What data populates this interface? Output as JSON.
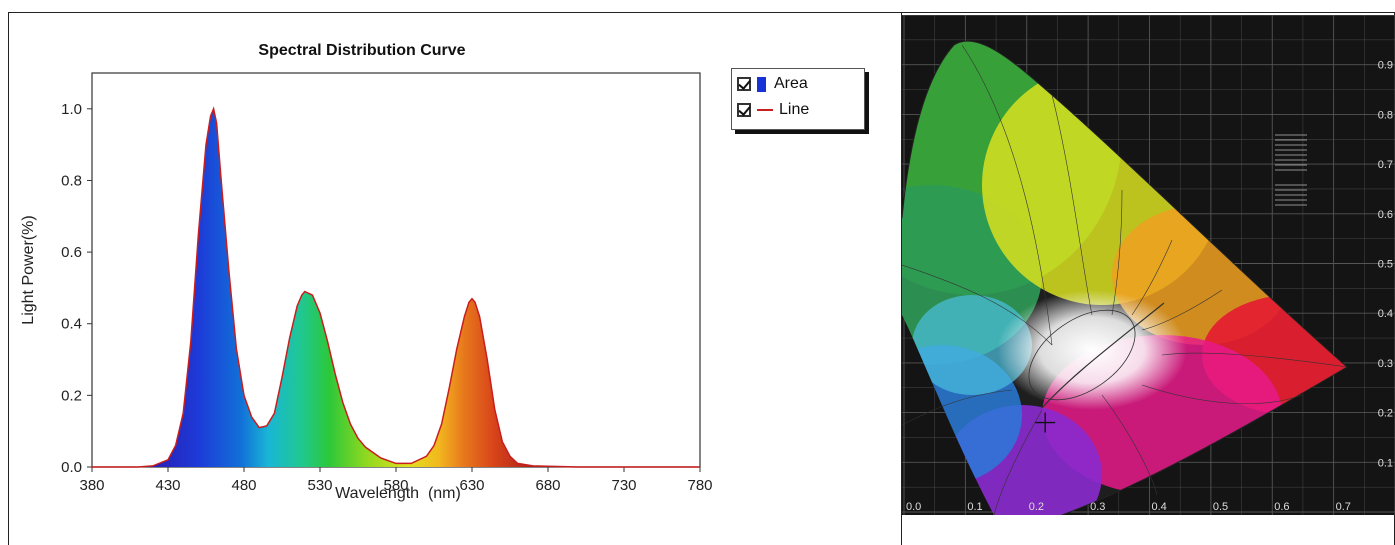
{
  "chart_data": [
    {
      "type": "area",
      "title": "Spectral Distribution Curve",
      "xlabel": "Wavelength  (nm)",
      "ylabel": "Light Power(%)",
      "xlim": [
        380,
        780
      ],
      "ylim": [
        0,
        1.1
      ],
      "xticks": [
        "380",
        "430",
        "480",
        "530",
        "580",
        "630",
        "680",
        "730",
        "780"
      ],
      "yticks": [
        "0.0",
        "0.2",
        "0.4",
        "0.6",
        "0.8",
        "1.0"
      ],
      "grid": false,
      "legend_position": "right",
      "legend": [
        {
          "label": "Area",
          "checked": true,
          "color": "#1733d6"
        },
        {
          "label": "Line",
          "checked": true,
          "color": "#c81e1e"
        }
      ],
      "series": [
        {
          "name": "Line",
          "x": [
            380,
            410,
            420,
            430,
            435,
            440,
            445,
            450,
            455,
            458,
            460,
            462,
            465,
            470,
            475,
            480,
            485,
            490,
            495,
            500,
            505,
            510,
            515,
            518,
            520,
            525,
            530,
            535,
            540,
            545,
            550,
            555,
            560,
            570,
            580,
            590,
            600,
            605,
            610,
            615,
            620,
            625,
            628,
            630,
            632,
            635,
            640,
            645,
            650,
            655,
            660,
            670,
            700,
            780
          ],
          "y": [
            0,
            0,
            0.003,
            0.02,
            0.06,
            0.15,
            0.35,
            0.65,
            0.9,
            0.98,
            1.0,
            0.96,
            0.8,
            0.55,
            0.33,
            0.2,
            0.14,
            0.11,
            0.115,
            0.15,
            0.25,
            0.36,
            0.45,
            0.48,
            0.49,
            0.48,
            0.43,
            0.35,
            0.26,
            0.18,
            0.12,
            0.08,
            0.055,
            0.025,
            0.01,
            0.01,
            0.03,
            0.06,
            0.12,
            0.22,
            0.33,
            0.42,
            0.46,
            0.47,
            0.46,
            0.42,
            0.3,
            0.16,
            0.07,
            0.03,
            0.01,
            0.003,
            0,
            0
          ]
        }
      ]
    },
    {
      "type": "scatter",
      "title": "",
      "xticks": [
        "0.0",
        "0.1",
        "0.2",
        "0.3",
        "0.4",
        "0.5",
        "0.6",
        "0.7"
      ],
      "yticks": [
        "0.9",
        "0.8",
        "0.7",
        "0.6",
        "0.5",
        "0.4",
        "0.3",
        "0.2",
        "0.1"
      ],
      "xlim": [
        0,
        0.75
      ],
      "ylim": [
        0,
        0.9
      ],
      "grid": true,
      "background": "#141414",
      "series": [
        {
          "name": "",
          "x": [
            0.23
          ],
          "y": [
            0.18
          ]
        }
      ]
    }
  ]
}
